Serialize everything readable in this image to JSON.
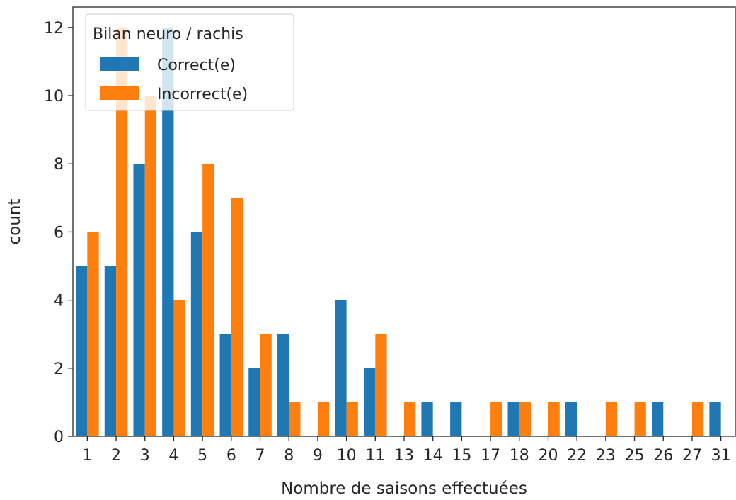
{
  "chart_data": {
    "type": "bar",
    "xlabel": "Nombre de saisons effectuées",
    "ylabel": "count",
    "categories": [
      "1",
      "2",
      "3",
      "4",
      "5",
      "6",
      "7",
      "8",
      "9",
      "10",
      "11",
      "13",
      "14",
      "15",
      "17",
      "18",
      "20",
      "22",
      "23",
      "25",
      "26",
      "27",
      "31"
    ],
    "series": [
      {
        "name": "Correct(e)",
        "color": "#1f77b4",
        "values": [
          5,
          5,
          8,
          12,
          6,
          3,
          2,
          3,
          0,
          4,
          2,
          0,
          1,
          1,
          0,
          1,
          0,
          1,
          0,
          0,
          1,
          0,
          1
        ]
      },
      {
        "name": "Incorrect(e)",
        "color": "#ff7f0e",
        "values": [
          6,
          12,
          10,
          4,
          8,
          7,
          3,
          1,
          1,
          1,
          3,
          1,
          0,
          0,
          1,
          1,
          1,
          0,
          1,
          1,
          0,
          1,
          0
        ]
      }
    ],
    "ylim": [
      0,
      12.6
    ],
    "yticks": [
      0,
      2,
      4,
      6,
      8,
      10,
      12
    ],
    "grid": false,
    "legend": {
      "title": "Bilan neuro / rachis",
      "placement": "top-left"
    }
  }
}
